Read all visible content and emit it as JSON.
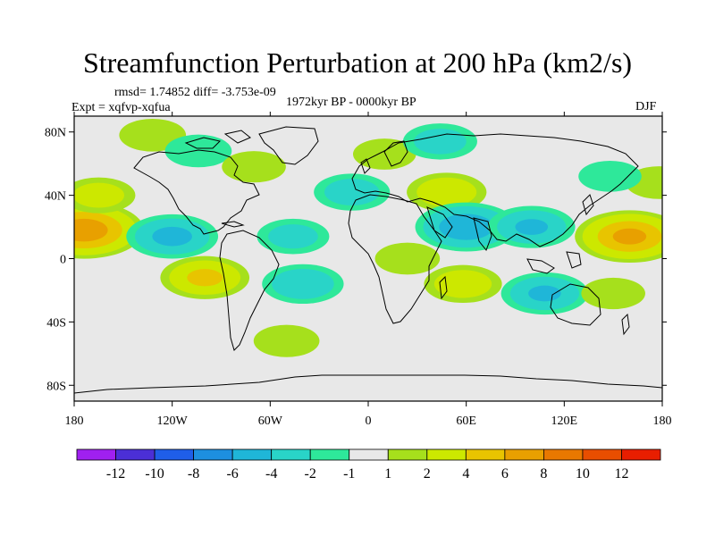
{
  "chart_data": {
    "type": "heatmap",
    "title": "Streamfunction Perturbation at 200 hPa (km2/s)",
    "stats": "rmsd= 1.74852 diff= -3.753e-09",
    "experiment": "Expt = xqfvp-xqfua",
    "period": "1972kyr BP - 0000kyr BP",
    "season": "DJF",
    "xlabel": "",
    "ylabel": "",
    "x_range": [
      -180,
      180
    ],
    "y_range": [
      -90,
      90
    ],
    "x_ticks": [
      {
        "value": -180,
        "label": "180"
      },
      {
        "value": -120,
        "label": "120W"
      },
      {
        "value": -60,
        "label": "60W"
      },
      {
        "value": 0,
        "label": "0"
      },
      {
        "value": 60,
        "label": "60E"
      },
      {
        "value": 120,
        "label": "120E"
      },
      {
        "value": 180,
        "label": "180"
      }
    ],
    "y_ticks": [
      {
        "value": 80,
        "label": "80N"
      },
      {
        "value": 40,
        "label": "40N"
      },
      {
        "value": 0,
        "label": "0"
      },
      {
        "value": -40,
        "label": "40S"
      },
      {
        "value": -80,
        "label": "80S"
      }
    ],
    "colorbar": {
      "levels": [
        "-12",
        "-10",
        "-8",
        "-6",
        "-4",
        "-2",
        "-1",
        "1",
        "2",
        "4",
        "6",
        "8",
        "10",
        "12"
      ],
      "colors": [
        "#a020f0",
        "#4b2fd6",
        "#1f5ee8",
        "#1d8fe0",
        "#1fb6d8",
        "#29d4c8",
        "#2ee89a",
        "#e8e8e8",
        "#a6e01c",
        "#cce800",
        "#e8c400",
        "#e8a000",
        "#e87800",
        "#e84e00",
        "#e81e00"
      ]
    },
    "anomalies": [
      {
        "lon": -174,
        "lat": 18,
        "value": 7.5
      },
      {
        "lon": -165,
        "lat": 40,
        "value": 2.5
      },
      {
        "lon": -132,
        "lat": 78,
        "value": 1.8
      },
      {
        "lon": -120,
        "lat": 14,
        "value": -4.5
      },
      {
        "lon": -100,
        "lat": -12,
        "value": 4.2
      },
      {
        "lon": -104,
        "lat": 68,
        "value": -1.8
      },
      {
        "lon": -70,
        "lat": 58,
        "value": 1.5
      },
      {
        "lon": -46,
        "lat": 14,
        "value": -2.4
      },
      {
        "lon": -40,
        "lat": -16,
        "value": -3.4
      },
      {
        "lon": -50,
        "lat": -52,
        "value": 1.7
      },
      {
        "lon": -10,
        "lat": 42,
        "value": -2.8
      },
      {
        "lon": 10,
        "lat": 66,
        "value": 1.4
      },
      {
        "lon": 44,
        "lat": 74,
        "value": -2.6
      },
      {
        "lon": 48,
        "lat": 42,
        "value": 3.2
      },
      {
        "lon": 60,
        "lat": 20,
        "value": -5.6
      },
      {
        "lon": 100,
        "lat": 20,
        "value": -4.0
      },
      {
        "lon": 24,
        "lat": 0,
        "value": 1.6
      },
      {
        "lon": 58,
        "lat": -16,
        "value": 3.0
      },
      {
        "lon": 108,
        "lat": -22,
        "value": -4.0
      },
      {
        "lon": 160,
        "lat": 14,
        "value": 6.4
      },
      {
        "lon": 178,
        "lat": 48,
        "value": 1.8
      },
      {
        "lon": 150,
        "lat": -22,
        "value": 1.5
      },
      {
        "lon": 148,
        "lat": 52,
        "value": -1.4
      }
    ]
  }
}
